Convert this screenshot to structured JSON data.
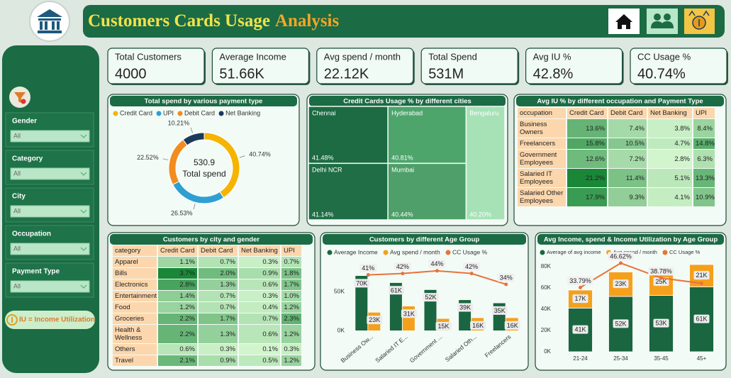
{
  "header": {
    "title_main": "Customers Cards Usage",
    "title_accent": "Analysis"
  },
  "filters": {
    "items": [
      {
        "label": "Gender",
        "value": "All"
      },
      {
        "label": "Category",
        "value": "All"
      },
      {
        "label": "City",
        "value": "All"
      },
      {
        "label": "Occupation",
        "value": "All"
      },
      {
        "label": "Payment Type",
        "value": "All"
      }
    ],
    "note": "IU = Income Utilization"
  },
  "kpis": [
    {
      "label": "Total Customers",
      "value": "4000"
    },
    {
      "label": "Average Income",
      "value": "51.66K"
    },
    {
      "label": "Avg spend / month",
      "value": "22.12K"
    },
    {
      "label": "Total Spend",
      "value": "531M"
    },
    {
      "label": "Avg IU %",
      "value": "42.8%"
    },
    {
      "label": "CC Usage %",
      "value": "40.74%"
    }
  ],
  "chart_data": [
    {
      "type": "pie",
      "title": "Total spend by various payment type",
      "categories": [
        "Credit Card",
        "UPI",
        "Debit Card",
        "Net Banking"
      ],
      "values": [
        40.74,
        26.53,
        22.52,
        10.21
      ],
      "value_labels": [
        "40.74%",
        "26.53%",
        "22.52%",
        "10.21%"
      ],
      "colors": [
        "#f5b400",
        "#2f9fd2",
        "#f28c1e",
        "#1a3a5c"
      ],
      "center_value": 530.9,
      "center_label": "Total spend",
      "legend": "top"
    },
    {
      "type": "treemap",
      "title": "Credit Cards Usage % by different cities",
      "categories": [
        "Chennai",
        "Hyderabad",
        "Bengaluru",
        "Delhi NCR",
        "Mumbai"
      ],
      "values": [
        41.48,
        40.81,
        40.2,
        41.14,
        40.44
      ],
      "value_labels": [
        "41.48%",
        "40.81%",
        "40.20%",
        "41.14%",
        "40.44%"
      ],
      "colors": [
        "#1c6b43",
        "#4da56c",
        "#a6e2b6",
        "#1f6e46",
        "#4e9f69"
      ]
    },
    {
      "type": "bar",
      "title": "Customers by different Age Group",
      "categories": [
        "Business Ow...",
        "Salaried IT E...",
        "Government ...",
        "Salaried Oth...",
        "Freelancers"
      ],
      "series": [
        {
          "name": "Average Income",
          "color": "#1a6640",
          "values": [
            70000,
            61000,
            52000,
            39000,
            35000
          ],
          "value_labels": [
            "70K",
            "61K",
            "52K",
            "39K",
            "35K"
          ]
        },
        {
          "name": "Avg spend / month",
          "color": "#f5a01c",
          "values": [
            23000,
            31000,
            15000,
            16000,
            16000
          ],
          "value_labels": [
            "23K",
            "31K",
            "15K",
            "16K",
            "16K"
          ]
        },
        {
          "name": "CC Usage %",
          "color": "#e8733a",
          "type": "line",
          "axis": "y2",
          "values": [
            41,
            42,
            44,
            42,
            34
          ],
          "value_labels": [
            "41%",
            "42%",
            "44%",
            "42%",
            "34%"
          ]
        }
      ],
      "ylim": [
        0,
        80000
      ],
      "yticks": [
        {
          "value": 0,
          "label": "0K"
        },
        {
          "value": 50000,
          "label": "50K"
        }
      ],
      "y2lim": [
        0,
        46
      ],
      "legend": "top"
    },
    {
      "type": "stacked_bar",
      "title": "Avg Income, spend & Income Utilization by Age Group",
      "categories": [
        "21-24",
        "25-34",
        "35-45",
        "45+"
      ],
      "series": [
        {
          "name": "Average of avg income",
          "color": "#1a6640",
          "values": [
            41000,
            52000,
            53000,
            61000
          ],
          "value_labels": [
            "41K",
            "52K",
            "53K",
            "61K"
          ]
        },
        {
          "name": "Avg spend / month",
          "color": "#f5a01c",
          "values": [
            17000,
            23000,
            25000,
            21000
          ],
          "value_labels": [
            "17K",
            "23K",
            "25K",
            "21K"
          ]
        },
        {
          "name": "CC Usage %",
          "color": "#e8733a",
          "type": "line",
          "axis": "y2",
          "values": [
            33.79,
            46.62,
            38.78,
            36
          ],
          "value_labels": [
            "33.79%",
            "46.62%",
            "38.78%",
            null
          ]
        }
      ],
      "ylim": [
        0,
        84000
      ],
      "yticks": [
        {
          "value": 0,
          "label": "0K"
        },
        {
          "value": 20000,
          "label": "20K"
        },
        {
          "value": 40000,
          "label": "40K"
        },
        {
          "value": 60000,
          "label": "60K"
        },
        {
          "value": 80000,
          "label": "80K"
        }
      ],
      "y2lim": [
        0,
        47
      ],
      "legend": "top"
    }
  ],
  "tables": [
    {
      "title": "Avg IU % by different occupation and Payment Type",
      "columns": [
        "occupation",
        "Credit Card",
        "Debit Card",
        "Net Banking",
        "UPI"
      ],
      "rows": [
        [
          "Business Owners",
          "13.6%",
          "7.4%",
          "3.8%",
          "8.4%"
        ],
        [
          "Freelancers",
          "15.8%",
          "10.5%",
          "4.7%",
          "14.8%"
        ],
        [
          "Government Employees",
          "12.6%",
          "7.2%",
          "2.8%",
          "6.3%"
        ],
        [
          "Salaried IT Employees",
          "21.2%",
          "11.4%",
          "5.1%",
          "13.3%"
        ],
        [
          "Salaried Other Employees",
          "17.9%",
          "9.3%",
          "4.1%",
          "10.9%"
        ]
      ]
    },
    {
      "title": "Customers by city and gender",
      "columns": [
        "category",
        "Credit Card",
        "Debit Card",
        "Net Banking",
        "UPI"
      ],
      "rows": [
        [
          "Apparel",
          "1.1%",
          "0.7%",
          "0.3%",
          "0.7%"
        ],
        [
          "Bills",
          "3.7%",
          "2.0%",
          "0.9%",
          "1.8%"
        ],
        [
          "Electronics",
          "2.8%",
          "1.3%",
          "0.6%",
          "1.7%"
        ],
        [
          "Entertainment",
          "1.4%",
          "0.7%",
          "0.3%",
          "1.0%"
        ],
        [
          "Food",
          "1.2%",
          "0.7%",
          "0.4%",
          "1.2%"
        ],
        [
          "Groceries",
          "2.2%",
          "1.7%",
          "0.7%",
          "2.3%"
        ],
        [
          "Health & Wellness",
          "2.2%",
          "1.3%",
          "0.6%",
          "1.2%"
        ],
        [
          "Others",
          "0.6%",
          "0.3%",
          "0.1%",
          "0.3%"
        ],
        [
          "Travel",
          "2.1%",
          "0.9%",
          "0.5%",
          "1.2%"
        ]
      ]
    }
  ]
}
